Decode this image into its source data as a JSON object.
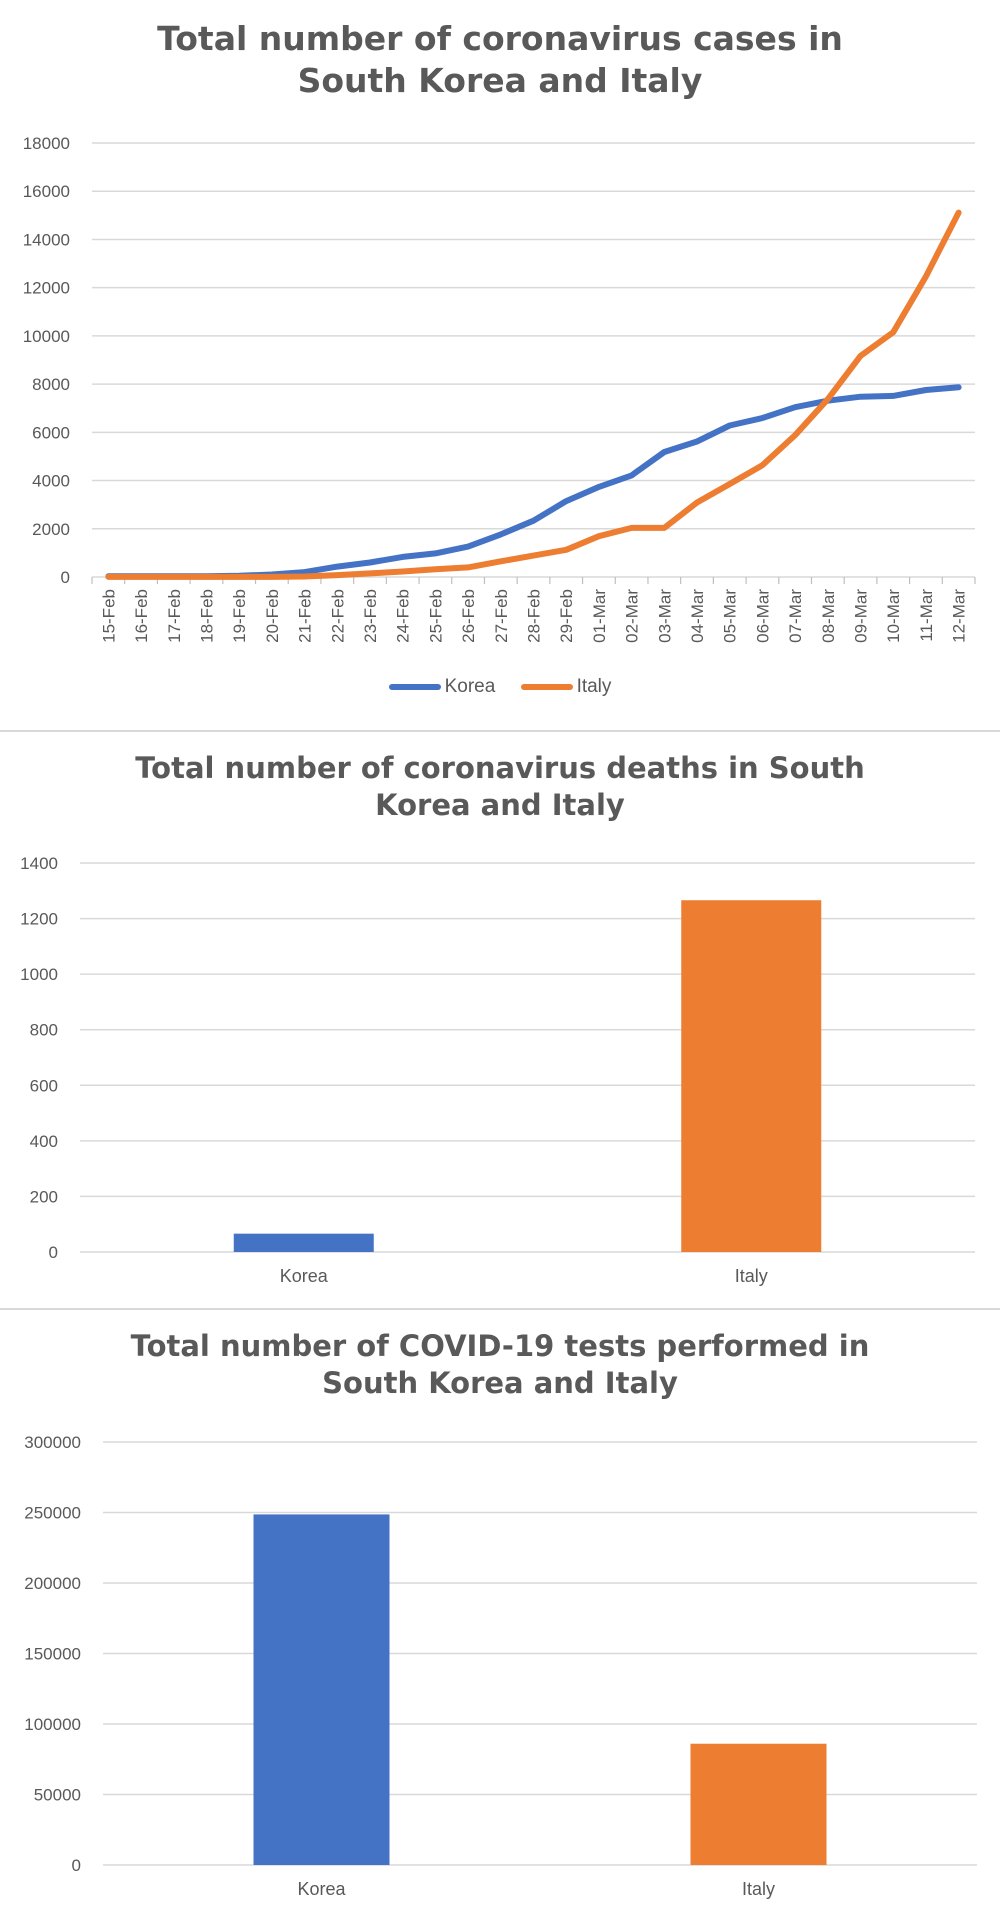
{
  "chart_data": [
    {
      "type": "line",
      "title": "Total number of coronavirus cases in South Korea and Italy",
      "x": [
        "15-Feb",
        "16-Feb",
        "17-Feb",
        "18-Feb",
        "19-Feb",
        "20-Feb",
        "21-Feb",
        "22-Feb",
        "23-Feb",
        "24-Feb",
        "25-Feb",
        "26-Feb",
        "27-Feb",
        "28-Feb",
        "29-Feb",
        "01-Mar",
        "02-Mar",
        "03-Mar",
        "04-Mar",
        "05-Mar",
        "06-Mar",
        "07-Mar",
        "08-Mar",
        "09-Mar",
        "10-Mar",
        "11-Mar",
        "12-Mar"
      ],
      "series": [
        {
          "name": "Korea",
          "color": "#4472c4",
          "values": [
            28,
            29,
            30,
            31,
            51,
            104,
            204,
            433,
            602,
            833,
            977,
            1261,
            1766,
            2337,
            3150,
            3736,
            4212,
            5186,
            5621,
            6284,
            6593,
            7041,
            7314,
            7478,
            7513,
            7755,
            7869
          ]
        },
        {
          "name": "Italy",
          "color": "#ed7d31",
          "values": [
            3,
            3,
            3,
            3,
            3,
            3,
            20,
            79,
            150,
            229,
            322,
            400,
            650,
            888,
            1128,
            1694,
            2036,
            2036,
            3089,
            3858,
            4636,
            5883,
            7375,
            9172,
            10149,
            12462,
            15113
          ]
        }
      ],
      "ylim": [
        0,
        18000
      ],
      "yticks": [
        0,
        2000,
        4000,
        6000,
        8000,
        10000,
        12000,
        14000,
        16000,
        18000
      ],
      "grid": true,
      "legend": "bottom"
    },
    {
      "type": "bar",
      "title": "Total number of coronavirus deaths in South Korea and Italy",
      "categories": [
        "Korea",
        "Italy"
      ],
      "values": [
        66,
        1266
      ],
      "colors": [
        "#4472c4",
        "#ed7d31"
      ],
      "ylim": [
        0,
        1400
      ],
      "yticks": [
        0,
        200,
        400,
        600,
        800,
        1000,
        1200,
        1400
      ],
      "grid": true
    },
    {
      "type": "bar",
      "title": "Total number of COVID-19 tests performed in South Korea and Italy",
      "categories": [
        "Korea",
        "Italy"
      ],
      "values": [
        248647,
        86011
      ],
      "colors": [
        "#4472c4",
        "#ed7d31"
      ],
      "ylim": [
        0,
        300000
      ],
      "yticks": [
        0,
        50000,
        100000,
        150000,
        200000,
        250000,
        300000
      ],
      "grid": true
    }
  ]
}
